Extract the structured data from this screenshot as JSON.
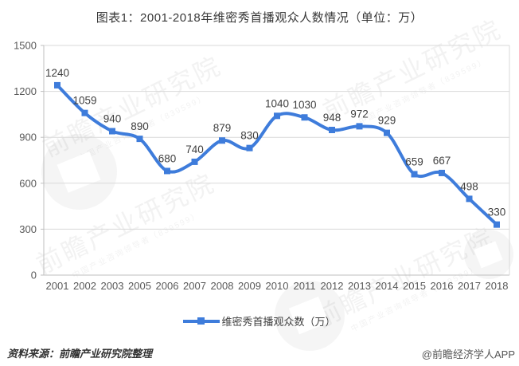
{
  "page": {
    "title": "图表1：2001-2018年维密秀首播观众人数情况（单位：万）"
  },
  "colors": {
    "accent": "#3E7CDB",
    "grid": "#D9D9D9",
    "axis": "#BFBFBF",
    "tick_label": "#595959",
    "data_label": "#3F3F3F"
  },
  "chart_data": {
    "type": "line",
    "smooth": true,
    "marker": "square",
    "title": "图表1：2001-2018年维密秀首播观众人数情况（单位：万）",
    "categories": [
      "2001",
      "2002",
      "2003",
      "2005",
      "2006",
      "2007",
      "2008",
      "2009",
      "2010",
      "2011",
      "2012",
      "2013",
      "2014",
      "2015",
      "2016",
      "2017",
      "2018"
    ],
    "series": [
      {
        "name": "维密秀首播观众数（万）",
        "values": [
          1240,
          1059,
          940,
          890,
          680,
          740,
          879,
          830,
          1040,
          1030,
          948,
          972,
          929,
          659,
          667,
          498,
          330
        ],
        "color": "#3E7CDB"
      }
    ],
    "xlabel": "",
    "ylabel": "",
    "ylim": [
      0,
      1500
    ],
    "yticks": [
      0,
      300,
      600,
      900,
      1200,
      1500
    ],
    "grid": true,
    "data_labels": true,
    "legend_position": "bottom"
  },
  "legend": {
    "label": "维密秀首播观众数（万）"
  },
  "footer": {
    "source": "资料来源：前瞻产业研究院整理",
    "attribution": "@前瞻经济学人APP"
  },
  "watermark": {
    "text": "前瞻产业研究院",
    "subtext": "中国产业咨询领导者（839599）"
  }
}
